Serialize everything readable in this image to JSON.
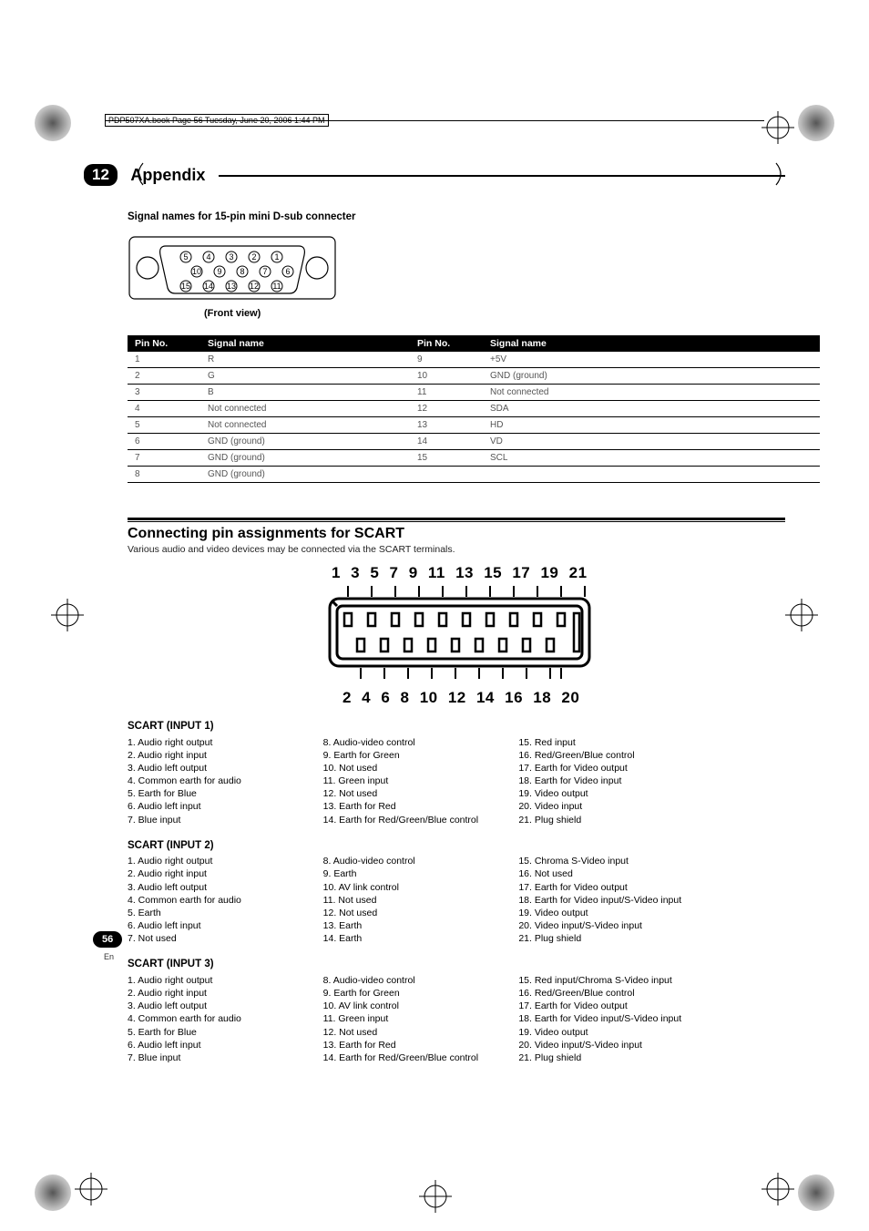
{
  "page_header": "PDP507XA.book  Page 56  Tuesday, June 20, 2006  1:44 PM",
  "chapter": {
    "number": "12",
    "title": "Appendix"
  },
  "section_dsub": {
    "title": "Signal names for 15-pin mini D-sub connecter",
    "front_view": "(Front view)",
    "connector_pins": [
      5,
      4,
      3,
      2,
      1,
      10,
      9,
      8,
      7,
      6,
      15,
      14,
      13,
      12,
      11
    ],
    "table_headers": [
      "Pin No.",
      "Signal name",
      "Pin No.",
      "Signal name"
    ],
    "rows": [
      [
        "1",
        "R",
        "9",
        "+5V"
      ],
      [
        "2",
        "G",
        "10",
        "GND (ground)"
      ],
      [
        "3",
        "B",
        "11",
        "Not connected"
      ],
      [
        "4",
        "Not connected",
        "12",
        "SDA"
      ],
      [
        "5",
        "Not connected",
        "13",
        "HD"
      ],
      [
        "6",
        "GND (ground)",
        "14",
        "VD"
      ],
      [
        "7",
        "GND (ground)",
        "15",
        "SCL"
      ],
      [
        "8",
        "GND (ground)",
        "",
        ""
      ]
    ]
  },
  "section_scart": {
    "title": "Connecting pin assignments for SCART",
    "subtitle": "Various audio and video devices may be connected via the SCART terminals.",
    "top_numbers": "1 3 5 7 9 11 13 15 17 19 21",
    "bottom_numbers": "2 4 6 8 10 12 14 16 18 20",
    "inputs": [
      {
        "heading": "SCART (INPUT 1)",
        "col1": [
          "1.  Audio right output",
          "2.  Audio right input",
          "3.  Audio left output",
          "4.  Common earth for audio",
          "5.  Earth for Blue",
          "6.  Audio left input",
          "7.  Blue input"
        ],
        "col2": [
          "8.   Audio-video control",
          "9.   Earth for Green",
          "10. Not used",
          "11. Green input",
          "12. Not used",
          "13. Earth for Red",
          "14. Earth for Red/Green/Blue control"
        ],
        "col3": [
          "15. Red input",
          "16. Red/Green/Blue control",
          "17. Earth for Video output",
          "18. Earth for Video input",
          "19. Video output",
          "20. Video input",
          "21. Plug shield"
        ]
      },
      {
        "heading": "SCART (INPUT 2)",
        "col1": [
          "1.  Audio right output",
          "2.  Audio right input",
          "3.  Audio left output",
          "4.  Common earth for audio",
          "5.  Earth",
          "6.  Audio left input",
          "7.  Not used"
        ],
        "col2": [
          "8.   Audio-video control",
          "9.   Earth",
          "10. AV link control",
          "11. Not used",
          "12. Not used",
          "13. Earth",
          "14. Earth"
        ],
        "col3": [
          "15. Chroma S-Video input",
          "16. Not used",
          "17. Earth for Video output",
          "18. Earth for Video input/S-Video input",
          "19. Video output",
          "20. Video input/S-Video input",
          "21. Plug shield"
        ]
      },
      {
        "heading": "SCART (INPUT 3)",
        "col1": [
          "1.  Audio right output",
          "2.  Audio right input",
          "3.  Audio left output",
          "4.  Common earth for audio",
          "5.  Earth for Blue",
          "6.  Audio left input",
          "7.  Blue input"
        ],
        "col2": [
          "8.   Audio-video control",
          "9.   Earth for Green",
          "10. AV link control",
          "11. Green input",
          "12. Not used",
          "13. Earth for Red",
          "14. Earth for Red/Green/Blue control"
        ],
        "col3": [
          "15. Red input/Chroma S-Video input",
          "16. Red/Green/Blue control",
          "17. Earth for Video output",
          "18. Earth for Video input/S-Video input",
          "19. Video output",
          "20. Video input/S-Video input",
          "21. Plug shield"
        ]
      }
    ]
  },
  "page_number": "56",
  "page_lang": "En",
  "colors": {
    "black": "#000000",
    "white": "#ffffff",
    "grey_text": "#555555"
  }
}
